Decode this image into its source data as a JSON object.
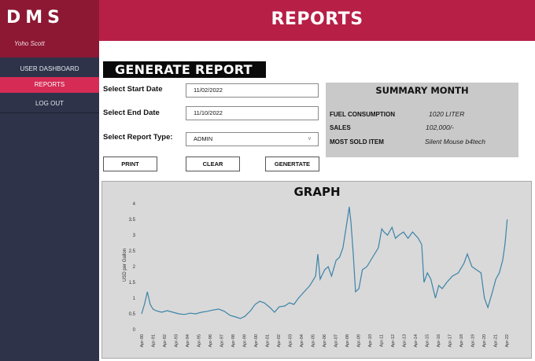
{
  "app": {
    "brand": "DMS",
    "user": "Yoho Scott"
  },
  "sidebar": {
    "items": [
      {
        "label": "USER DASHBOARD",
        "active": false
      },
      {
        "label": "REPORTS",
        "active": true
      },
      {
        "label": "LOG OUT",
        "active": false
      }
    ]
  },
  "header": {
    "title": "REPORTS"
  },
  "generate": {
    "title": "GENERATE REPORT",
    "start_label": "Select Start Date",
    "start_value": "11/02/2022",
    "end_label": "Select End Date",
    "end_value": "11/10/2022",
    "type_label": "Select Report Type:",
    "type_value": "ADMIN",
    "buttons": {
      "print": "PRINT",
      "clear": "CLEAR",
      "generate": "GENERTATE"
    }
  },
  "summary": {
    "title": "SUMMARY MONTH",
    "rows": [
      {
        "label": "FUEL CONSUMPTION",
        "value": "1020 LITER"
      },
      {
        "label": "SALES",
        "value": "102,000/-"
      },
      {
        "label": "MOST SOLD ITEM",
        "value": "Silent Mouse b4tech"
      }
    ]
  },
  "colors": {
    "sidebar": "#2f3349",
    "brand": "#8c1834",
    "header": "#b71f47",
    "active": "#d52b55",
    "line": "#3c83a8"
  },
  "chart_data": {
    "type": "line",
    "title": "GRAPH",
    "xlabel": "",
    "ylabel": "USD per Gallon",
    "ylim": [
      0,
      4
    ],
    "yticks": [
      "0",
      "0.5",
      "1",
      "1.5",
      "2",
      "2.5",
      "3",
      "3.5",
      "4"
    ],
    "categories": [
      "Apr-90",
      "Apr-91",
      "Apr-92",
      "Apr-93",
      "Apr-94",
      "Apr-95",
      "Apr-96",
      "Apr-97",
      "Apr-98",
      "Apr-99",
      "Apr-00",
      "Apr-01",
      "Apr-02",
      "Apr-03",
      "Apr-04",
      "Apr-05",
      "Apr-06",
      "Apr-07",
      "Apr-08",
      "Apr-09",
      "Apr-10",
      "Apr-11",
      "Apr-12",
      "Apr-13",
      "Apr-14",
      "Apr-15",
      "Apr-16",
      "Apr-17",
      "Apr-18",
      "Apr-19",
      "Apr-20",
      "Apr-21",
      "Apr-22"
    ],
    "grid": false,
    "legend": "none",
    "series": [
      {
        "x": [
          1990.25,
          1990.5,
          1990.75,
          1991.0,
          1991.25,
          1991.5,
          1992.0,
          1992.5,
          1993.0,
          1993.5,
          1994.0,
          1994.5,
          1995.0,
          1995.5,
          1996.0,
          1996.5,
          1997.0,
          1997.5,
          1998.0,
          1998.5,
          1998.9,
          1999.3,
          1999.8,
          2000.2,
          2000.6,
          2001.0,
          2001.5,
          2001.9,
          2002.3,
          2002.8,
          2003.2,
          2003.6,
          2004.0,
          2004.5,
          2005.0,
          2005.5,
          2005.7,
          2005.9,
          2006.3,
          2006.6,
          2006.9,
          2007.3,
          2007.6,
          2007.9,
          2008.2,
          2008.45,
          2008.6,
          2008.8,
          2009.0,
          2009.3,
          2009.6,
          2010.0,
          2010.5,
          2011.0,
          2011.3,
          2011.5,
          2011.8,
          2012.2,
          2012.5,
          2012.8,
          2013.2,
          2013.6,
          2014.0,
          2014.5,
          2014.8,
          2015.0,
          2015.3,
          2015.6,
          2016.0,
          2016.3,
          2016.6,
          2017.0,
          2017.5,
          2018.0,
          2018.5,
          2018.8,
          2019.2,
          2019.6,
          2020.0,
          2020.3,
          2020.6,
          2021.0,
          2021.3,
          2021.6,
          2021.9,
          2022.1,
          2022.3
        ],
        "y": [
          0.5,
          0.8,
          1.2,
          0.8,
          0.65,
          0.6,
          0.55,
          0.6,
          0.55,
          0.5,
          0.48,
          0.52,
          0.5,
          0.55,
          0.58,
          0.62,
          0.65,
          0.58,
          0.45,
          0.4,
          0.35,
          0.42,
          0.6,
          0.8,
          0.9,
          0.85,
          0.7,
          0.55,
          0.72,
          0.75,
          0.85,
          0.8,
          1.0,
          1.2,
          1.4,
          1.7,
          2.4,
          1.6,
          1.9,
          2.0,
          1.7,
          2.2,
          2.3,
          2.6,
          3.3,
          3.9,
          3.4,
          2.4,
          1.2,
          1.3,
          1.9,
          2.0,
          2.3,
          2.6,
          3.2,
          3.1,
          3.0,
          3.25,
          2.9,
          3.0,
          3.1,
          2.9,
          3.1,
          2.9,
          2.7,
          1.5,
          1.8,
          1.6,
          1.0,
          1.4,
          1.3,
          1.5,
          1.7,
          1.8,
          2.1,
          2.4,
          2.0,
          1.9,
          1.8,
          1.0,
          0.7,
          1.2,
          1.6,
          1.8,
          2.2,
          2.7,
          3.5
        ]
      }
    ]
  }
}
